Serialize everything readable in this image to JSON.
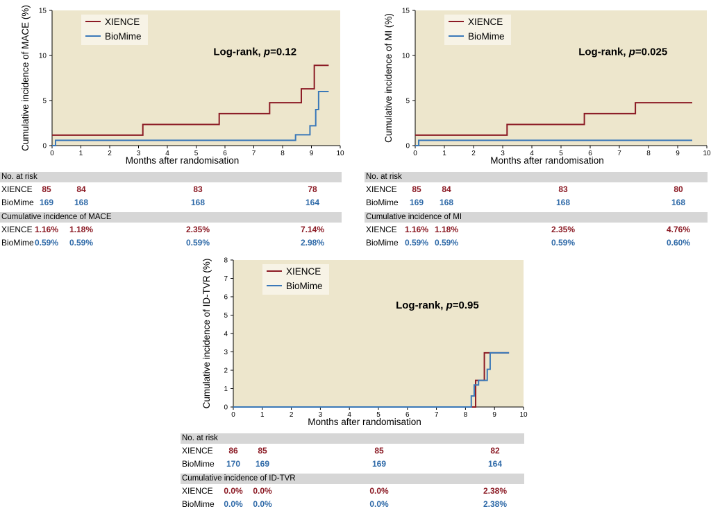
{
  "colors": {
    "xience": "#8b1a24",
    "biomime": "#3a78b8",
    "plot_bg": "#ede6cc",
    "table_header": "#d6d6d6"
  },
  "chart_data": [
    {
      "id": "mace",
      "type": "line",
      "step": true,
      "ylabel": "Cumulative incidence of MACE (%)",
      "xlabel": "Months after randomisation",
      "xlim": [
        0,
        10
      ],
      "ylim": [
        0,
        15
      ],
      "xticks": [
        "0",
        "1",
        "2",
        "3",
        "4",
        "5",
        "6",
        "7",
        "8",
        "9",
        "10"
      ],
      "yticks": [
        "0",
        "5",
        "10",
        "15"
      ],
      "legend": [
        "XIENCE",
        "BioMime"
      ],
      "legend_position": "top-left",
      "annotation": {
        "text_prefix": "Log-rank, ",
        "p_label": "p",
        "text_suffix": "=0.12"
      },
      "series": [
        {
          "name": "XIENCE",
          "x": [
            0,
            3.15,
            5.8,
            7.55,
            8.65,
            9.1,
            9.6
          ],
          "y": [
            1.16,
            2.35,
            3.55,
            4.76,
            6.3,
            8.9,
            8.9
          ]
        },
        {
          "name": "BioMime",
          "x": [
            0,
            0.12,
            8.45,
            8.95,
            9.15,
            9.25,
            9.6
          ],
          "y": [
            0,
            0.59,
            1.2,
            2.2,
            4.0,
            6.0,
            6.0
          ]
        }
      ],
      "table": {
        "risk_header": "No. at risk",
        "cum_header": "Cumulative incidence of MACE",
        "row_labels": [
          "XIENCE",
          "BioMime"
        ],
        "risk": {
          "XIENCE": [
            "85",
            "84",
            "83",
            "78"
          ],
          "BioMime": [
            "169",
            "168",
            "168",
            "164"
          ]
        },
        "cum": {
          "XIENCE": [
            "1.16%",
            "1.18%",
            "2.35%",
            "7.14%"
          ],
          "BioMime": [
            "0.59%",
            "0.59%",
            "0.59%",
            "2.98%"
          ]
        }
      }
    },
    {
      "id": "mi",
      "type": "line",
      "step": true,
      "ylabel": "Cumulative incidence of MI (%)",
      "xlabel": "Months after randomisation",
      "xlim": [
        0,
        10
      ],
      "ylim": [
        0,
        15
      ],
      "xticks": [
        "0",
        "1",
        "2",
        "3",
        "4",
        "5",
        "6",
        "7",
        "8",
        "9",
        "10"
      ],
      "yticks": [
        "0",
        "5",
        "10",
        "15"
      ],
      "legend": [
        "XIENCE",
        "BioMime"
      ],
      "legend_position": "top-left",
      "annotation": {
        "text_prefix": "Log-rank, ",
        "p_label": "p",
        "text_suffix": "=0.025"
      },
      "series": [
        {
          "name": "XIENCE",
          "x": [
            0,
            3.15,
            5.8,
            7.55,
            9.5
          ],
          "y": [
            1.16,
            2.35,
            3.55,
            4.76,
            4.76
          ]
        },
        {
          "name": "BioMime",
          "x": [
            0,
            0.12,
            9.5
          ],
          "y": [
            0,
            0.59,
            0.59
          ]
        }
      ],
      "table": {
        "risk_header": "No. at risk",
        "cum_header": "Cumulative incidence of MI",
        "row_labels": [
          "XIENCE",
          "BioMime"
        ],
        "risk": {
          "XIENCE": [
            "85",
            "84",
            "83",
            "80"
          ],
          "BioMime": [
            "169",
            "168",
            "168",
            "168"
          ]
        },
        "cum": {
          "XIENCE": [
            "1.16%",
            "1.18%",
            "2.35%",
            "4.76%"
          ],
          "BioMime": [
            "0.59%",
            "0.59%",
            "0.59%",
            "0.60%"
          ]
        }
      }
    },
    {
      "id": "idtvr",
      "type": "line",
      "step": true,
      "ylabel": "Cumulative incidence of ID-TVR (%)",
      "xlabel": "Months after randomisation",
      "xlim": [
        0,
        10
      ],
      "ylim": [
        0,
        8
      ],
      "xticks": [
        "0",
        "1",
        "2",
        "3",
        "4",
        "5",
        "6",
        "7",
        "8",
        "9",
        "10"
      ],
      "yticks": [
        "0",
        "1",
        "2",
        "3",
        "4",
        "5",
        "6",
        "7",
        "8"
      ],
      "legend": [
        "XIENCE",
        "BioMime"
      ],
      "legend_position": "top-left",
      "annotation": {
        "text_prefix": "Log-rank, ",
        "p_label": "p",
        "text_suffix": "=0.95"
      },
      "series": [
        {
          "name": "XIENCE",
          "x": [
            0,
            8.35,
            8.65,
            9.5
          ],
          "y": [
            0,
            1.45,
            2.95,
            2.95
          ]
        },
        {
          "name": "BioMime",
          "x": [
            0,
            8.2,
            8.3,
            8.45,
            8.75,
            8.85,
            9.5
          ],
          "y": [
            0,
            0.6,
            1.2,
            1.45,
            2.05,
            2.95,
            2.95
          ]
        }
      ],
      "table": {
        "risk_header": "No. at risk",
        "cum_header": "Cumulative incidence of ID-TVR",
        "row_labels": [
          "XIENCE",
          "BioMime"
        ],
        "risk": {
          "XIENCE": [
            "86",
            "85",
            "85",
            "82"
          ],
          "BioMime": [
            "170",
            "169",
            "169",
            "164"
          ]
        },
        "cum": {
          "XIENCE": [
            "0.0%",
            "0.0%",
            "0.0%",
            "2.38%"
          ],
          "BioMime": [
            "0.0%",
            "0.0%",
            "0.0%",
            "2.38%"
          ]
        }
      }
    }
  ]
}
